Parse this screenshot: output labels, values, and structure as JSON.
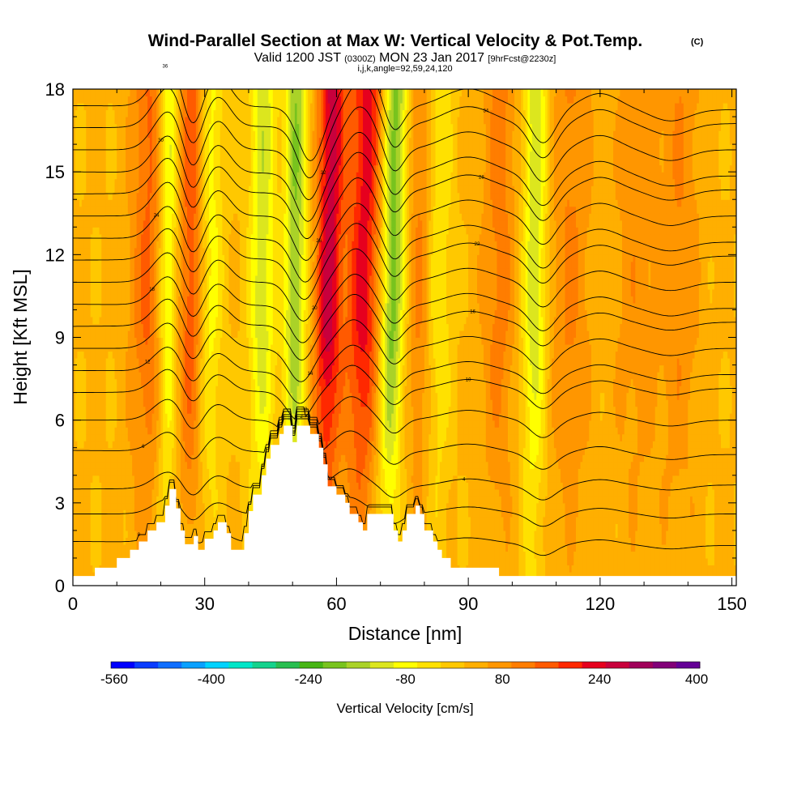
{
  "title": "Wind-Parallel Section at Max W: Vertical Velocity & Pot.Temp.",
  "title_badge": "(C)",
  "subtitle_main": "Valid 1200 JST",
  "subtitle_utc": "(0300Z)",
  "subtitle_date": "MON 23 Jan 2017",
  "subtitle_fcst": "[9hrFcst@2230z]",
  "subtitle_ijk": "i,j,k,angle=92,59,24,120",
  "chart_data": {
    "type": "heatmap",
    "xlabel": "Distance [nm]",
    "ylabel": "Height [Kft MSL]",
    "xlim": [
      0,
      151
    ],
    "ylim": [
      0,
      18
    ],
    "xticks": [
      0,
      30,
      60,
      90,
      120,
      150
    ],
    "yticks": [
      0,
      3,
      6,
      9,
      12,
      15,
      18
    ],
    "colorbar": {
      "label": "Vertical Velocity [cm/s]",
      "labeled_ticks": [
        "-560",
        "-400",
        "-240",
        "-80",
        "80",
        "240",
        "400"
      ],
      "levels": [
        -560,
        -520,
        -480,
        -440,
        -400,
        -360,
        -320,
        -280,
        -240,
        -200,
        -160,
        -120,
        -80,
        -40,
        0,
        40,
        80,
        120,
        160,
        200,
        240,
        280,
        320,
        360,
        400
      ],
      "colors": [
        "#0000ff",
        "#0a3cff",
        "#0f6eff",
        "#0aa0ff",
        "#00d2ff",
        "#00e6c8",
        "#14d28c",
        "#28be50",
        "#46b414",
        "#78c31e",
        "#aad228",
        "#dce61e",
        "#ffff00",
        "#ffe100",
        "#ffc800",
        "#ffaf00",
        "#ff9600",
        "#ff7d00",
        "#ff5a00",
        "#ff2800",
        "#e6001e",
        "#c8003c",
        "#a0005a",
        "#820078",
        "#640096"
      ]
    },
    "velocity_features": [
      {
        "x_center": 17,
        "width": 4,
        "amplitude": 120
      },
      {
        "x_center": 21.5,
        "width": 2.2,
        "amplitude": -150
      },
      {
        "x_center": 27,
        "width": 3,
        "amplitude": 150
      },
      {
        "x_center": 31,
        "width": 3,
        "amplitude": -110
      },
      {
        "x_center": 43,
        "width": 3,
        "amplitude": -150
      },
      {
        "x_center": 50.5,
        "width": 2.5,
        "amplitude": -200
      },
      {
        "x_center": 58,
        "width": 3,
        "amplitude": 250
      },
      {
        "x_center": 66,
        "width": 4,
        "amplitude": 210
      },
      {
        "x_center": 72.5,
        "width": 2.8,
        "amplitude": -230
      },
      {
        "x_center": 79,
        "width": 3,
        "amplitude": 90
      },
      {
        "x_center": 83,
        "width": 3,
        "amplitude": -90
      },
      {
        "x_center": 97,
        "width": 4,
        "amplitude": 90
      },
      {
        "x_center": 105,
        "width": 2.8,
        "amplitude": -160
      },
      {
        "x_center": 113,
        "width": 5,
        "amplitude": 80
      },
      {
        "x_center": 128,
        "width": 5,
        "amplitude": 60
      },
      {
        "x_center": 138,
        "width": 5,
        "amplitude": 70
      }
    ],
    "terrain_height_kft": [
      [
        0,
        0.35
      ],
      [
        5,
        0.35
      ],
      [
        5,
        0.65
      ],
      [
        10,
        0.65
      ],
      [
        10,
        1.0
      ],
      [
        13,
        1.0
      ],
      [
        13,
        1.3
      ],
      [
        15,
        1.3
      ],
      [
        15,
        1.6
      ],
      [
        17,
        1.6
      ],
      [
        17,
        2.0
      ],
      [
        19,
        2.0
      ],
      [
        19,
        2.3
      ],
      [
        21,
        2.3
      ],
      [
        21,
        2.9
      ],
      [
        22,
        2.9
      ],
      [
        22,
        3.5
      ],
      [
        23.5,
        3.5
      ],
      [
        23.5,
        2.8
      ],
      [
        24.5,
        2.8
      ],
      [
        24.5,
        2.0
      ],
      [
        25.5,
        2.0
      ],
      [
        25.5,
        1.5
      ],
      [
        27.5,
        1.5
      ],
      [
        27.5,
        1.8
      ],
      [
        28.5,
        1.8
      ],
      [
        28.5,
        1.3
      ],
      [
        30,
        1.3
      ],
      [
        30,
        1.7
      ],
      [
        32,
        1.7
      ],
      [
        32,
        2.0
      ],
      [
        33,
        2.0
      ],
      [
        33,
        2.3
      ],
      [
        35,
        2.3
      ],
      [
        35,
        1.9
      ],
      [
        36,
        1.9
      ],
      [
        36,
        1.3
      ],
      [
        39,
        1.3
      ],
      [
        39,
        1.9
      ],
      [
        40,
        1.9
      ],
      [
        40,
        2.7
      ],
      [
        41,
        2.7
      ],
      [
        41,
        3.3
      ],
      [
        43,
        3.3
      ],
      [
        43,
        4.0
      ],
      [
        44,
        4.0
      ],
      [
        44,
        4.6
      ],
      [
        45,
        4.6
      ],
      [
        45,
        5.1
      ],
      [
        47,
        5.1
      ],
      [
        47,
        5.5
      ],
      [
        48,
        5.5
      ],
      [
        48,
        5.8
      ],
      [
        50,
        5.8
      ],
      [
        50,
        5.2
      ],
      [
        51,
        5.2
      ],
      [
        51,
        5.8
      ],
      [
        54,
        5.8
      ],
      [
        54,
        5.5
      ],
      [
        56,
        5.5
      ],
      [
        56,
        5.0
      ],
      [
        57,
        5.0
      ],
      [
        57,
        4.4
      ],
      [
        58,
        4.4
      ],
      [
        58,
        3.6
      ],
      [
        60,
        3.6
      ],
      [
        60,
        3.3
      ],
      [
        62,
        3.3
      ],
      [
        62,
        3.0
      ],
      [
        63,
        3.0
      ],
      [
        63,
        2.6
      ],
      [
        65,
        2.6
      ],
      [
        65,
        2.3
      ],
      [
        66,
        2.3
      ],
      [
        66,
        2.0
      ],
      [
        67,
        2.0
      ],
      [
        67,
        2.6
      ],
      [
        73,
        2.6
      ],
      [
        73,
        2.0
      ],
      [
        74,
        2.0
      ],
      [
        74,
        1.6
      ],
      [
        75,
        1.6
      ],
      [
        75,
        2.0
      ],
      [
        76,
        2.0
      ],
      [
        76,
        2.6
      ],
      [
        78,
        2.6
      ],
      [
        78,
        2.9
      ],
      [
        79,
        2.9
      ],
      [
        79,
        2.6
      ],
      [
        80,
        2.6
      ],
      [
        80,
        2.0
      ],
      [
        82,
        2.0
      ],
      [
        82,
        1.6
      ],
      [
        83,
        1.6
      ],
      [
        83,
        1.3
      ],
      [
        84,
        1.3
      ],
      [
        84,
        1.0
      ],
      [
        86,
        1.0
      ],
      [
        86,
        0.65
      ],
      [
        97,
        0.65
      ],
      [
        97,
        0.35
      ],
      [
        151,
        0.35
      ]
    ],
    "theta_contour_base_heights_kft": [
      1.6,
      2.6,
      3.5,
      4.9,
      6.0,
      7.0,
      7.8,
      8.6,
      9.4,
      10.2,
      11.0,
      11.8,
      12.6,
      13.4,
      14.2,
      15.0,
      15.8,
      16.6,
      17.4
    ],
    "theta_contour_labels": [
      "0",
      "2",
      "4",
      "6",
      "8",
      "10",
      "12",
      "14",
      "16",
      "18",
      "20",
      "22",
      "24",
      "26",
      "28",
      "30",
      "32",
      "34",
      "36"
    ]
  }
}
